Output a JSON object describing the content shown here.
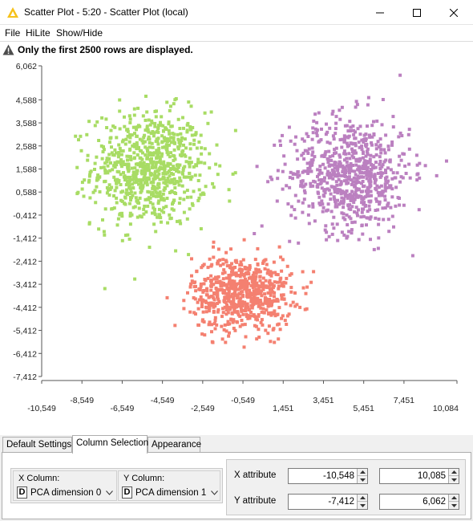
{
  "window": {
    "title": "Scatter Plot - 5:20 - Scatter Plot (local)",
    "icon": "warning-triangle-icon"
  },
  "menu": {
    "items": [
      "File",
      "HiLite",
      "Show/Hide"
    ]
  },
  "warning": {
    "text": "Only the first 2500 rows are displayed."
  },
  "chart_data": {
    "type": "scatter",
    "title": "",
    "xlabel": "",
    "ylabel": "",
    "xlim": [
      -10.549,
      10.084
    ],
    "ylim": [
      -7.412,
      6.062
    ],
    "x_ticks": [
      "-10,549",
      "-8,549",
      "-6,549",
      "-4,549",
      "-2,549",
      "-0,549",
      "1,451",
      "3,451",
      "5,451",
      "7,451",
      "10,084"
    ],
    "x_tick_values": [
      -10.549,
      -8.549,
      -6.549,
      -4.549,
      -2.549,
      -0.549,
      1.451,
      3.451,
      5.451,
      7.451,
      10.084
    ],
    "y_ticks": [
      "6,062",
      "4,588",
      "3,588",
      "2,588",
      "1,588",
      "0,588",
      "-0,412",
      "-1,412",
      "-2,412",
      "-3,412",
      "-4,412",
      "-5,412",
      "-6,412",
      "-7,412"
    ],
    "y_tick_values": [
      6.062,
      4.588,
      3.588,
      2.588,
      1.588,
      0.588,
      -0.412,
      -1.412,
      -2.412,
      -3.412,
      -4.412,
      -5.412,
      -6.412,
      -7.412
    ],
    "grid": false,
    "legend": "none",
    "series": [
      {
        "color": "#a8dc64",
        "center": [
          -5.2,
          1.6
        ],
        "spread": [
          2.3,
          2.0
        ],
        "count": 800
      },
      {
        "color": "#bb80c0",
        "center": [
          4.8,
          1.4
        ],
        "spread": [
          2.4,
          2.0
        ],
        "count": 750
      },
      {
        "color": "#f48070",
        "center": [
          -0.6,
          -3.8
        ],
        "spread": [
          2.0,
          1.3
        ],
        "count": 700
      }
    ]
  },
  "tabs": {
    "items": [
      "Default Settings",
      "Column Selection",
      "Appearance"
    ],
    "active": "Column Selection"
  },
  "columns": {
    "x_label": "X Column:",
    "x_type": "D",
    "x_value": "PCA dimension 0",
    "y_label": "Y Column:",
    "y_type": "D",
    "y_value": "PCA dimension 1"
  },
  "ranges": {
    "x_label": "X attribute",
    "x_min": "-10,548",
    "x_max": "10,085",
    "y_label": "Y attribute",
    "y_min": "-7,412",
    "y_max": "6,062"
  }
}
